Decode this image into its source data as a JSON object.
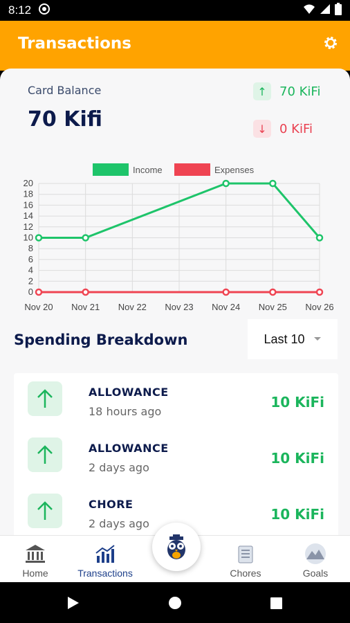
{
  "status_bar": {
    "time": "8:12"
  },
  "header": {
    "title": "Transactions"
  },
  "balance": {
    "label": "Card Balance",
    "value": "70 Kifi"
  },
  "income": {
    "value": "70 KiFi",
    "arrow": "↑"
  },
  "expenses": {
    "value": "0 KiFi",
    "arrow": "↓"
  },
  "chart_data": {
    "type": "line",
    "categories": [
      "Nov 20",
      "Nov 21",
      "Nov 22",
      "Nov 23",
      "Nov 24",
      "Nov 25",
      "Nov 26"
    ],
    "series": [
      {
        "name": "Income",
        "color": "#1ec46a",
        "points": [
          [
            0,
            10
          ],
          [
            1,
            10
          ],
          [
            4,
            20
          ],
          [
            5,
            20
          ],
          [
            6,
            10
          ]
        ]
      },
      {
        "name": "Expenses",
        "color": "#ef4452",
        "points": [
          [
            0,
            0
          ],
          [
            1,
            0
          ],
          [
            4,
            0
          ],
          [
            5,
            0
          ],
          [
            6,
            0
          ]
        ]
      }
    ],
    "yticks": [
      "20",
      "18",
      "16",
      "14",
      "12",
      "10",
      "8",
      "6",
      "4",
      "2",
      "0"
    ],
    "ylim": [
      0,
      20
    ]
  },
  "spending": {
    "title": "Spending Breakdown",
    "period": "Last 10"
  },
  "transactions": [
    {
      "name": "ALLOWANCE",
      "time": "18 hours ago",
      "amount": "10 KiFi"
    },
    {
      "name": "ALLOWANCE",
      "time": "2 days ago",
      "amount": "10 KiFi"
    },
    {
      "name": "CHORE",
      "time": "2 days ago",
      "amount": "10 KiFi"
    }
  ],
  "nav": {
    "home": "Home",
    "transactions": "Transactions",
    "chores": "Chores",
    "goals": "Goals"
  }
}
